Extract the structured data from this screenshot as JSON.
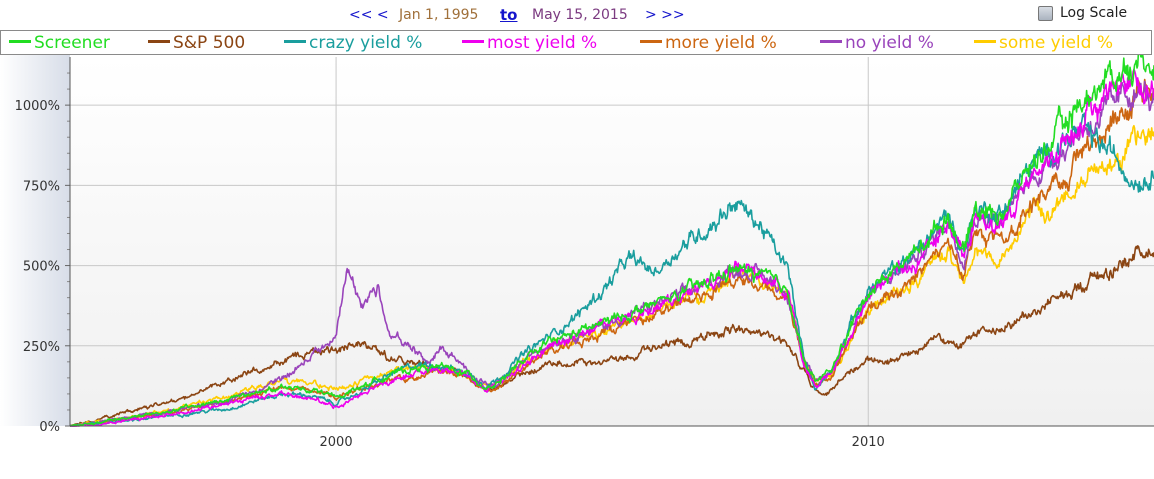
{
  "nav": {
    "prev": "<< <",
    "start": "Jan 1, 1995",
    "to": "to",
    "end": "May 15, 2015",
    "next": "> >>"
  },
  "log_scale": {
    "label": "Log Scale",
    "checked": false
  },
  "colors": {
    "Screener": "#22dd22",
    "S&P 500": "#8b4513",
    "crazy yield %": "#1a9e9e",
    "most yield %": "#ee00ee",
    "more yield %": "#cc6611",
    "no yield %": "#9944bb",
    "some yield %": "#ffcc00"
  },
  "chart_data": {
    "type": "line",
    "x_unit": "year",
    "y_unit": "%",
    "xlim": [
      1995.0,
      2015.37
    ],
    "ylim": [
      0,
      1150
    ],
    "x_ticks": [
      2000,
      2010
    ],
    "x_tick_labels": [
      "2000",
      "2010"
    ],
    "y_ticks": [
      0,
      250,
      500,
      750,
      1000
    ],
    "y_tick_labels": [
      "0%",
      "250%",
      "500%",
      "750%",
      "1000%"
    ],
    "grid": true,
    "legend_position": "top",
    "log_scale": false,
    "series": [
      {
        "name": "S&P 500",
        "x": [
          1995.0,
          1996.0,
          1997.0,
          1998.0,
          1998.5,
          1999.0,
          1999.5,
          2000.0,
          2000.3,
          2000.7,
          2001.0,
          2001.5,
          2001.8,
          2002.0,
          2002.5,
          2002.8,
          2003.0,
          2003.5,
          2004.0,
          2005.0,
          2006.0,
          2007.0,
          2007.5,
          2007.8,
          2008.5,
          2008.8,
          2009.0,
          2009.2,
          2009.5,
          2010.0,
          2010.5,
          2011.0,
          2011.3,
          2011.7,
          2012.0,
          2013.0,
          2014.0,
          2015.0,
          2015.37
        ],
        "y": [
          0,
          40,
          80,
          140,
          175,
          200,
          230,
          240,
          260,
          250,
          210,
          200,
          170,
          180,
          150,
          110,
          115,
          160,
          190,
          200,
          240,
          280,
          310,
          290,
          250,
          170,
          110,
          95,
          150,
          200,
          210,
          250,
          280,
          240,
          280,
          340,
          440,
          530,
          565
        ]
      },
      {
        "name": "some yield %",
        "x": [
          1995.0,
          1996.0,
          1997.0,
          1998.0,
          1998.5,
          1999.0,
          1999.5,
          2000.0,
          2000.5,
          2001.0,
          2001.5,
          2002.0,
          2002.5,
          2002.8,
          2003.0,
          2003.5,
          2004.0,
          2005.0,
          2006.0,
          2007.0,
          2007.5,
          2008.0,
          2008.5,
          2008.8,
          2009.0,
          2009.3,
          2009.7,
          2010.0,
          2010.5,
          2011.0,
          2011.5,
          2011.8,
          2012.0,
          2012.5,
          2013.0,
          2013.5,
          2014.0,
          2014.5,
          2015.0,
          2015.37
        ],
        "y": [
          0,
          25,
          55,
          95,
          120,
          140,
          135,
          115,
          140,
          170,
          180,
          185,
          155,
          125,
          130,
          190,
          240,
          290,
          360,
          420,
          470,
          455,
          410,
          200,
          140,
          160,
          270,
          360,
          410,
          470,
          550,
          450,
          560,
          520,
          650,
          680,
          770,
          820,
          880,
          910
        ]
      },
      {
        "name": "more yield %",
        "x": [
          1995.0,
          1996.0,
          1997.0,
          1998.0,
          1998.5,
          1999.0,
          1999.5,
          2000.0,
          2000.5,
          2001.0,
          2001.5,
          2002.0,
          2002.5,
          2002.8,
          2003.0,
          2003.5,
          2004.0,
          2005.0,
          2006.0,
          2007.0,
          2007.5,
          2008.0,
          2008.5,
          2008.8,
          2009.0,
          2009.3,
          2009.7,
          2010.0,
          2010.5,
          2011.0,
          2011.5,
          2011.8,
          2012.0,
          2012.5,
          2013.0,
          2013.5,
          2014.0,
          2014.5,
          2015.0,
          2015.37
        ],
        "y": [
          0,
          20,
          45,
          80,
          100,
          120,
          110,
          90,
          115,
          140,
          155,
          170,
          150,
          110,
          115,
          180,
          230,
          290,
          350,
          420,
          460,
          440,
          400,
          190,
          130,
          150,
          280,
          370,
          430,
          490,
          570,
          470,
          590,
          560,
          680,
          740,
          850,
          930,
          1000,
          1030
        ]
      },
      {
        "name": "no yield %",
        "x": [
          1995.0,
          1996.0,
          1997.0,
          1998.0,
          1998.5,
          1999.0,
          1999.5,
          2000.0,
          2000.2,
          2000.5,
          2000.8,
          2001.0,
          2001.3,
          2001.7,
          2002.0,
          2002.3,
          2002.6,
          2003.0,
          2003.5,
          2004.0,
          2005.0,
          2006.0,
          2007.0,
          2007.5,
          2008.0,
          2008.5,
          2008.8,
          2009.0,
          2009.3,
          2009.7,
          2010.0,
          2010.5,
          2011.0,
          2011.5,
          2011.8,
          2012.0,
          2012.5,
          2013.0,
          2013.5,
          2014.0,
          2014.5,
          2015.0,
          2015.37
        ],
        "y": [
          0,
          25,
          50,
          80,
          110,
          150,
          210,
          270,
          480,
          380,
          430,
          300,
          260,
          200,
          240,
          200,
          150,
          120,
          200,
          260,
          310,
          380,
          440,
          490,
          470,
          410,
          200,
          140,
          170,
          320,
          410,
          470,
          540,
          640,
          520,
          660,
          640,
          760,
          840,
          920,
          980,
          1050,
          1010
        ]
      },
      {
        "name": "crazy yield %",
        "x": [
          1995.0,
          1996.0,
          1997.0,
          1998.0,
          1998.5,
          1999.0,
          1999.5,
          2000.0,
          2000.5,
          2001.0,
          2001.5,
          2002.0,
          2002.5,
          2002.8,
          2003.0,
          2003.5,
          2004.0,
          2004.5,
          2005.0,
          2005.5,
          2006.0,
          2006.5,
          2007.0,
          2007.5,
          2008.0,
          2008.5,
          2008.8,
          2009.0,
          2009.3,
          2009.7,
          2010.0,
          2010.5,
          2011.0,
          2011.5,
          2011.8,
          2012.0,
          2012.5,
          2013.0,
          2013.5,
          2014.0,
          2014.5,
          2015.0,
          2015.37
        ],
        "y": [
          0,
          15,
          35,
          55,
          80,
          100,
          95,
          70,
          110,
          160,
          190,
          190,
          160,
          130,
          140,
          220,
          280,
          340,
          420,
          520,
          480,
          560,
          620,
          700,
          620,
          480,
          200,
          120,
          170,
          330,
          420,
          490,
          560,
          660,
          540,
          680,
          660,
          800,
          870,
          920,
          860,
          770,
          780
        ]
      },
      {
        "name": "most yield %",
        "x": [
          1995.0,
          1996.0,
          1997.0,
          1998.0,
          1998.5,
          1999.0,
          1999.5,
          2000.0,
          2000.5,
          2001.0,
          2001.5,
          2002.0,
          2002.5,
          2002.8,
          2003.0,
          2003.5,
          2004.0,
          2005.0,
          2006.0,
          2007.0,
          2007.5,
          2008.0,
          2008.5,
          2008.8,
          2009.0,
          2009.3,
          2009.7,
          2010.0,
          2010.5,
          2011.0,
          2011.5,
          2011.8,
          2012.0,
          2012.5,
          2013.0,
          2013.5,
          2014.0,
          2014.5,
          2015.0,
          2015.37
        ],
        "y": [
          0,
          15,
          40,
          70,
          90,
          100,
          90,
          60,
          100,
          140,
          170,
          175,
          150,
          115,
          125,
          190,
          250,
          310,
          370,
          440,
          500,
          480,
          430,
          190,
          130,
          160,
          300,
          400,
          470,
          530,
          640,
          520,
          650,
          620,
          760,
          840,
          950,
          1010,
          1060,
          1070
        ]
      },
      {
        "name": "Screener",
        "x": [
          1995.0,
          1996.0,
          1997.0,
          1998.0,
          1998.5,
          1999.0,
          1999.5,
          2000.0,
          2000.5,
          2001.0,
          2001.5,
          2002.0,
          2002.5,
          2002.8,
          2003.0,
          2003.5,
          2004.0,
          2005.0,
          2006.0,
          2007.0,
          2007.5,
          2008.0,
          2008.5,
          2008.8,
          2009.0,
          2009.3,
          2009.7,
          2010.0,
          2010.5,
          2011.0,
          2011.5,
          2011.8,
          2012.0,
          2012.5,
          2013.0,
          2013.5,
          2014.0,
          2014.5,
          2015.0,
          2015.37
        ],
        "y": [
          0,
          20,
          50,
          85,
          105,
          120,
          115,
          90,
          125,
          160,
          180,
          185,
          160,
          120,
          130,
          200,
          260,
          320,
          380,
          450,
          490,
          470,
          420,
          200,
          140,
          170,
          320,
          420,
          490,
          560,
          660,
          540,
          680,
          660,
          800,
          900,
          1010,
          1080,
          1130,
          1140
        ]
      }
    ]
  }
}
